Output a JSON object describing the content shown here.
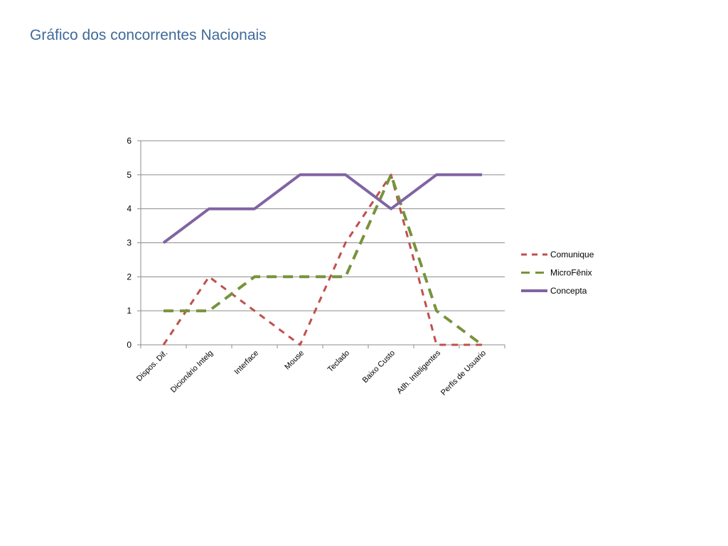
{
  "page": {
    "title": "Gráfico dos concorrentes Nacionais"
  },
  "chart_data": {
    "type": "line",
    "title": "",
    "xlabel": "",
    "ylabel": "",
    "categories": [
      "Dispos. Dif.",
      "Dicionário Intelg",
      "Interface",
      "Mouse",
      "Teclado",
      "Baixo Custo",
      "Atlh. Inteligentes",
      "Perfis de Usuario"
    ],
    "ylim": [
      0,
      6
    ],
    "yticks": [
      0,
      1,
      2,
      3,
      4,
      5,
      6
    ],
    "grid": true,
    "legend": "right",
    "series": [
      {
        "name": "Comunique",
        "values": [
          0,
          2,
          1,
          0,
          3,
          5,
          0,
          0
        ],
        "color": "#c0504d",
        "style": "dashed"
      },
      {
        "name": "MicroFênix",
        "values": [
          1,
          1,
          2,
          2,
          2,
          5,
          1,
          0
        ],
        "color": "#77933c",
        "style": "dashed"
      },
      {
        "name": "Concepta",
        "values": [
          3,
          4,
          4,
          5,
          5,
          4,
          5,
          5
        ],
        "color": "#8064a2",
        "style": "solid"
      }
    ]
  }
}
